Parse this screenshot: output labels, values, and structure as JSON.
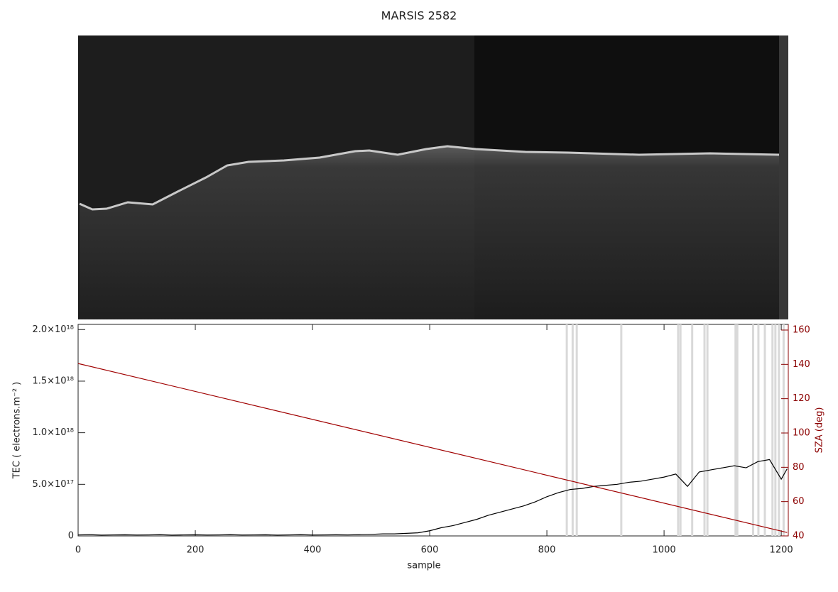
{
  "chart_data": {
    "type": "line",
    "title": "MARSIS 2582",
    "x_label": "sample",
    "y_label": "TEC ( electrons.m⁻² )",
    "y2_label": "SZA (deg)",
    "xlim": [
      0,
      1212
    ],
    "xticks": [
      0,
      200,
      400,
      600,
      800,
      1000,
      1200
    ],
    "ylim": [
      0,
      2.05e+18
    ],
    "yticks": [
      0,
      {
        "value": 5e+17,
        "label": "5.0×10¹⁷"
      },
      {
        "value": 1e+18,
        "label": "1.0×10¹⁸"
      },
      {
        "value": 1.5e+18,
        "label": "1.5×10¹⁸"
      },
      {
        "value": 2e+18,
        "label": "2.0×10¹⁸"
      }
    ],
    "y2lim": [
      40,
      163.3
    ],
    "y2ticks": [
      40,
      60,
      80,
      100,
      120,
      140,
      160
    ],
    "shading_x": [
      834,
      844,
      851,
      927,
      1024,
      1028,
      1048,
      1069,
      1074,
      1122,
      1125,
      1152,
      1161,
      1172,
      1185,
      1190,
      1196,
      1204
    ],
    "shading_color": "#d9d9d9",
    "series": [
      {
        "color": "#000000",
        "x": [
          0,
          20,
          40,
          60,
          80,
          100,
          120,
          140,
          160,
          180,
          200,
          220,
          240,
          260,
          280,
          300,
          320,
          340,
          360,
          380,
          400,
          420,
          440,
          460,
          480,
          500,
          520,
          540,
          560,
          580,
          600,
          620,
          640,
          660,
          680,
          700,
          720,
          740,
          760,
          780,
          800,
          820,
          840,
          860,
          880,
          900,
          920,
          940,
          960,
          980,
          1000,
          1020,
          1040,
          1060,
          1080,
          1100,
          1120,
          1140,
          1160,
          1180,
          1200,
          1210
        ],
        "values": [
          1e+16,
          1.2e+16,
          8000000000000000.0,
          1e+16,
          1.1e+16,
          9000000000000000.0,
          1e+16,
          1.2e+16,
          8000000000000000.0,
          1e+16,
          1.1e+16,
          9000000000000000.0,
          1e+16,
          1.2e+16,
          9000000000000000.0,
          1e+16,
          1.1e+16,
          8000000000000000.0,
          1e+16,
          1.2e+16,
          9000000000000000.0,
          1e+16,
          1.1e+16,
          1e+16,
          1.2e+16,
          1.5e+16,
          2e+16,
          2e+16,
          2.5e+16,
          3e+16,
          5e+16,
          8e+16,
          1e+17,
          1.3e+17,
          1.6e+17,
          2e+17,
          2.3e+17,
          2.6e+17,
          2.9e+17,
          3.3e+17,
          3.8e+17,
          4.2e+17,
          4.5e+17,
          4.6e+17,
          4.8e+17,
          4.9e+17,
          5e+17,
          5.2e+17,
          5.3e+17,
          5.5e+17,
          5.7e+17,
          6e+17,
          4.8e+17,
          6.2e+17,
          6.4e+17,
          6.6e+17,
          6.8e+17,
          6.6e+17,
          7.2e+17,
          7.4e+17,
          5.5e+17,
          6.5e+17
        ]
      },
      {
        "color": "#a00000",
        "axis": "y2",
        "x": [
          0,
          1210
        ],
        "values": [
          140.5,
          42
        ]
      }
    ]
  }
}
